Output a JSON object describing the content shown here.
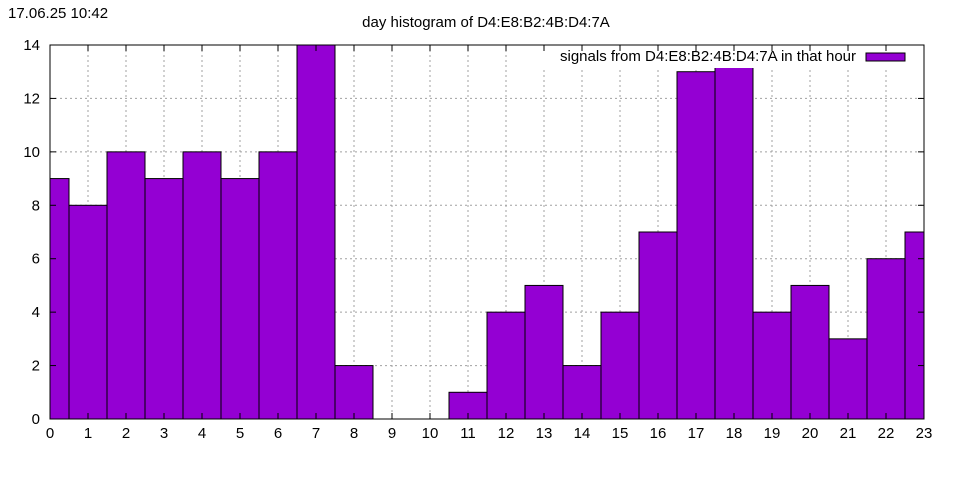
{
  "timestamp": "17.06.25 10:42",
  "chart_data": {
    "type": "bar",
    "title": "day histogram of D4:E8:B2:4B:D4:7A",
    "categories": [
      "0",
      "1",
      "2",
      "3",
      "4",
      "5",
      "6",
      "7",
      "8",
      "9",
      "10",
      "11",
      "12",
      "13",
      "14",
      "15",
      "16",
      "17",
      "18",
      "19",
      "20",
      "21",
      "22",
      "23"
    ],
    "series": [
      {
        "name": "signals from D4:E8:B2:4B:D4:7A in that hour",
        "values": [
          9,
          8,
          10,
          9,
          10,
          9,
          10,
          14,
          2,
          0,
          0,
          1,
          4,
          5,
          2,
          4,
          7,
          13,
          14,
          4,
          5,
          3,
          6,
          7
        ]
      }
    ],
    "x_range": [
      0,
      23
    ],
    "ylim": [
      0,
      14
    ],
    "yticks": [
      0,
      2,
      4,
      6,
      8,
      10,
      12,
      14
    ],
    "grid": true,
    "legend_position": "top-right",
    "bar_color": "#9400d3",
    "bar_edge_color": "#000000"
  }
}
